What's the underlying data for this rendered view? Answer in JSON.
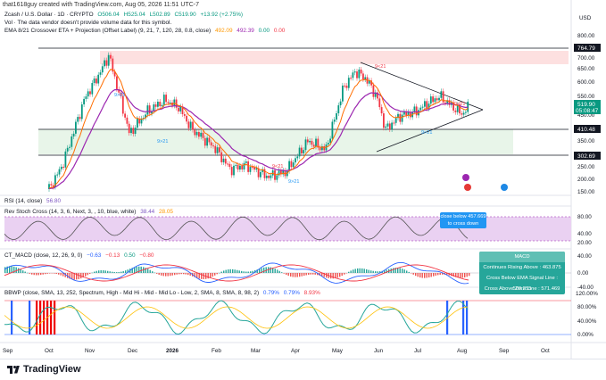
{
  "caption": "that1618guy created with TradingView.com, Aug 05, 2026 11:51 UTC-7",
  "symbol": {
    "name": "Zcash / U.S. Dollar · 1D · CRYPTO",
    "open": "O506.04",
    "high": "H525.04",
    "low": "L502.89",
    "close": "C519.90",
    "change": "+13.92 (+2.75%)"
  },
  "vol_note": "Vol · The data vendor doesn't provide volume data for this symbol.",
  "ema_legend": {
    "label": "EMA 8/21 Crossover ETA + Projection (Offset Label) (9, 21, 7, 120, 28, 0.8, close)",
    "v1": "492.09",
    "v2": "492.39",
    "v3": "0.00",
    "v4": "0.00"
  },
  "price_axis": {
    "currency": "USD",
    "ticks": [
      "800.00",
      "700.00",
      "650.00",
      "600.00",
      "550.00",
      "450.00",
      "350.00",
      "250.00",
      "200.00",
      "150.00"
    ]
  },
  "price_labels": {
    "top_line": "764.79",
    "last": "519.90",
    "countdown": "05:08:47",
    "mid_line": "410.48",
    "bottom_line": "302.69"
  },
  "chart_markers": [
    "9>21",
    "9>21",
    "9<21",
    "9>21",
    "9<21",
    "9>21",
    "9<21"
  ],
  "rsi": {
    "label": "RSI (14, close)",
    "value": "56.80"
  },
  "rev_stoch": {
    "label": "Rev Stoch Cross (14, 3, 6, Next, 3, , 10, blue, white)",
    "v1": "38.44",
    "v2": "28.05",
    "ticks": [
      "80.00",
      "40.00",
      "20.00"
    ],
    "tooltip": "close below 457.669 to cross down"
  },
  "macd": {
    "label": "CT_MACD (close, 12, 26, 9, 0)",
    "v1": "−0.63",
    "v2": "−0.13",
    "v3": "0.50",
    "v4": "−0.80",
    "ticks": [
      "40.00",
      "0.00",
      "-40.00"
    ],
    "tooltip": {
      "title": "MACD",
      "lines": [
        "Continues Rising Above : 463.875",
        "Cross Below EMA Signal Line : 509.255",
        "Cross Above Zero Line : 571.469"
      ]
    }
  },
  "bbwp": {
    "label": "BBWP (close, SMA, 13, 252, Spectrum, High - Mid Hi - Mid - Mid Lo - Low, 2, SMA, 8, SMA, 8, 98, 2)",
    "v1": "0.79%",
    "v2": "0.79%",
    "v3": "8.93%",
    "ticks": [
      "120.00%",
      "80.00%",
      "40.00%",
      "0.00%"
    ]
  },
  "time_axis": [
    "Sep",
    "Oct",
    "Nov",
    "Dec",
    "2026",
    "Feb",
    "Mar",
    "Apr",
    "May",
    "Jun",
    "Jul",
    "Aug",
    "Sep",
    "Oct"
  ],
  "footer": {
    "brand": "TradingView"
  },
  "colors": {
    "up": "#089981",
    "down": "#f23645",
    "ema_fast": "#ff6d00",
    "ema_slow": "#9c27b0",
    "rsc_fill": "#e1bee7",
    "tooltip_green": "#26a69a",
    "tooltip_blue": "#2196f3"
  }
}
